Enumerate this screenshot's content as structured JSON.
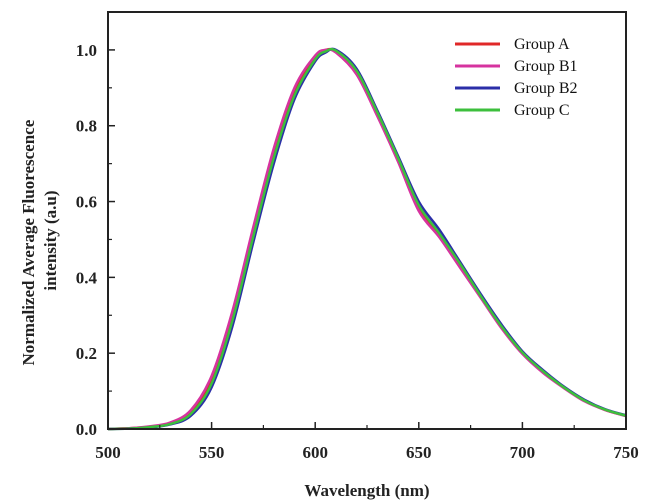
{
  "chart_data": {
    "type": "line",
    "xlabel": "Wavelength (nm)",
    "ylabel_lines": [
      "Normalized Average Fluorescence",
      "intensity (a.u)"
    ],
    "xlim": [
      500,
      750
    ],
    "ylim": [
      0,
      1.1
    ],
    "xticks": [
      500,
      550,
      600,
      650,
      700,
      750
    ],
    "xtick_labels": [
      "500",
      "550",
      "600",
      "650",
      "700",
      "750"
    ],
    "yticks": [
      0.0,
      0.2,
      0.4,
      0.6,
      0.8,
      1.0
    ],
    "ytick_labels": [
      "0.0",
      "0.2",
      "0.4",
      "0.6",
      "0.8",
      "1.0"
    ],
    "grid": false,
    "legend_position": "top-right",
    "series": [
      {
        "name": "Group A",
        "color": "#e02828",
        "x": [
          500,
          510,
          520,
          530,
          540,
          550,
          560,
          570,
          580,
          590,
          600,
          605,
          610,
          620,
          630,
          640,
          650,
          660,
          670,
          680,
          690,
          700,
          710,
          720,
          730,
          740,
          750
        ],
        "y": [
          0.0,
          0.002,
          0.006,
          0.015,
          0.045,
          0.13,
          0.3,
          0.52,
          0.73,
          0.89,
          0.98,
          1.0,
          0.995,
          0.94,
          0.83,
          0.71,
          0.58,
          0.51,
          0.43,
          0.35,
          0.27,
          0.2,
          0.15,
          0.11,
          0.075,
          0.05,
          0.035
        ]
      },
      {
        "name": "Group B1",
        "color": "#d6339f",
        "x": [
          500,
          510,
          520,
          530,
          540,
          550,
          560,
          570,
          580,
          590,
          600,
          605,
          610,
          620,
          630,
          640,
          650,
          660,
          670,
          680,
          690,
          700,
          710,
          720,
          730,
          740,
          750
        ],
        "y": [
          0.0,
          0.002,
          0.007,
          0.017,
          0.05,
          0.14,
          0.31,
          0.53,
          0.74,
          0.9,
          0.985,
          1.0,
          0.993,
          0.935,
          0.825,
          0.705,
          0.575,
          0.505,
          0.425,
          0.345,
          0.265,
          0.198,
          0.148,
          0.108,
          0.073,
          0.05,
          0.034
        ]
      },
      {
        "name": "Group B2",
        "color": "#2b2fa8",
        "x": [
          500,
          510,
          520,
          530,
          540,
          550,
          560,
          570,
          580,
          590,
          600,
          605,
          610,
          620,
          630,
          640,
          650,
          660,
          670,
          680,
          690,
          700,
          710,
          720,
          730,
          740,
          750
        ],
        "y": [
          0.0,
          0.001,
          0.004,
          0.012,
          0.035,
          0.11,
          0.27,
          0.49,
          0.7,
          0.87,
          0.97,
          0.993,
          1.0,
          0.95,
          0.84,
          0.72,
          0.6,
          0.525,
          0.44,
          0.355,
          0.275,
          0.205,
          0.155,
          0.112,
          0.077,
          0.052,
          0.036
        ]
      },
      {
        "name": "Group C",
        "color": "#3cbf3c",
        "x": [
          500,
          510,
          520,
          530,
          540,
          550,
          560,
          570,
          580,
          590,
          600,
          605,
          610,
          620,
          630,
          640,
          650,
          660,
          670,
          680,
          690,
          700,
          710,
          720,
          730,
          740,
          750
        ],
        "y": [
          0.0,
          0.001,
          0.005,
          0.013,
          0.04,
          0.12,
          0.285,
          0.505,
          0.715,
          0.88,
          0.975,
          0.996,
          0.998,
          0.945,
          0.835,
          0.715,
          0.59,
          0.515,
          0.435,
          0.35,
          0.27,
          0.202,
          0.152,
          0.11,
          0.075,
          0.051,
          0.035
        ]
      }
    ]
  }
}
